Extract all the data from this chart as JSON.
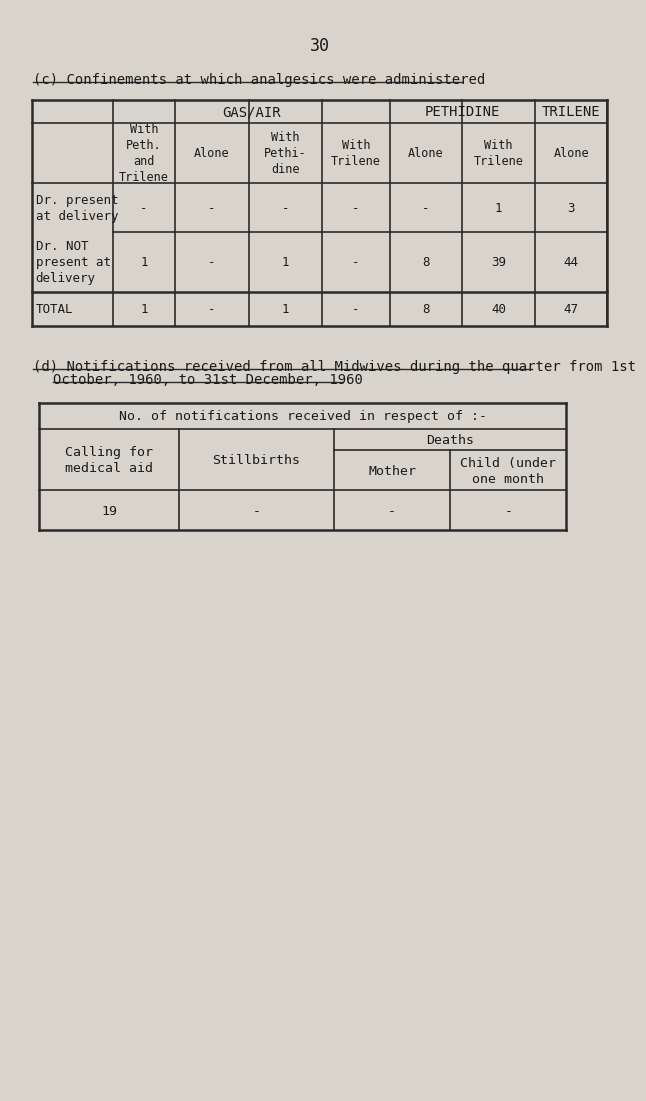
{
  "page_number": "30",
  "bg_color": "#d8d4cc",
  "table_c_title": "(c) Confinements at which analgesics were administered",
  "table_d_title_line1": "(d) Notifications received from all Midwives during the quarter from 1st",
  "table_d_title_line2": "October, 1960, to 31st December, 1960",
  "table_d_header_top": "No. of notifications received in respect of :-",
  "table_d_col1_header": "Calling for\nmedical aid",
  "table_d_col2_header": "Stillbirths",
  "table_d_col3_header": "Deaths",
  "table_d_col3a_header": "Mother",
  "table_d_col3b_header": "Child (under\none month",
  "table_d_data": [
    "19",
    "-",
    "-",
    "-"
  ],
  "font_family": "monospace",
  "text_color": "#1a1a1a",
  "line_color": "#2a2a2a",
  "bg_color_str": "#d8d4cc"
}
